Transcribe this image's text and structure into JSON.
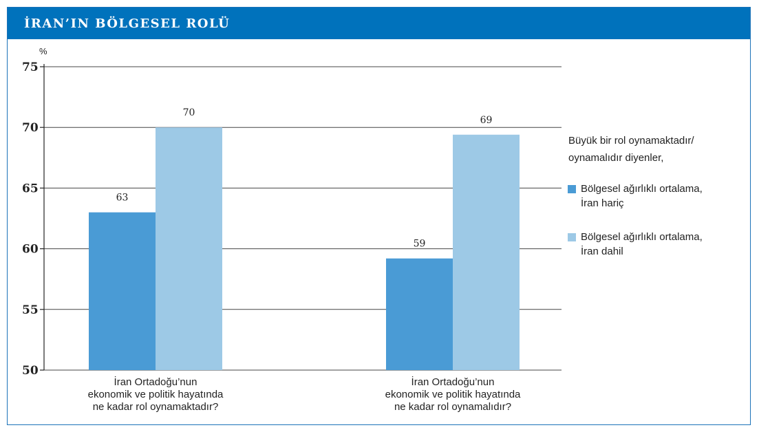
{
  "header": {
    "title": "İRAN’IN BÖLGESEL ROLÜ"
  },
  "colors": {
    "header_bg": "#0072bc",
    "series_dark": "#4a9bd5",
    "series_light": "#9dc9e6",
    "gridline": "#444444"
  },
  "chart_data": {
    "type": "bar",
    "ylabel": "%",
    "ylim": [
      50,
      75
    ],
    "yticks": [
      "75",
      "70",
      "65",
      "60",
      "55",
      "50"
    ],
    "categories": [
      "İran Ortadoğu’nun\nekonomik ve politik hayatında\nne kadar rol oynamaktadır?",
      "İran Ortadoğu’nun\nekonomik ve politik hayatında\nne kadar rol oynamalıdır?"
    ],
    "series": [
      {
        "name": "Bölgesel ağırlıklı ortalama,\nİran hariç",
        "values": [
          63,
          59.2
        ],
        "labels": [
          "63",
          "59"
        ],
        "color": "#4a9bd5"
      },
      {
        "name": "Bölgesel ağırlıklı ortalama,\nİran dahil",
        "values": [
          70,
          69.4
        ],
        "labels": [
          "70",
          "69"
        ],
        "color": "#9dc9e6"
      }
    ],
    "legend_heading": "Büyük bir rol oynamaktadır/\noynamalıdır diyenler,",
    "legend_position": "right",
    "grid": true
  }
}
